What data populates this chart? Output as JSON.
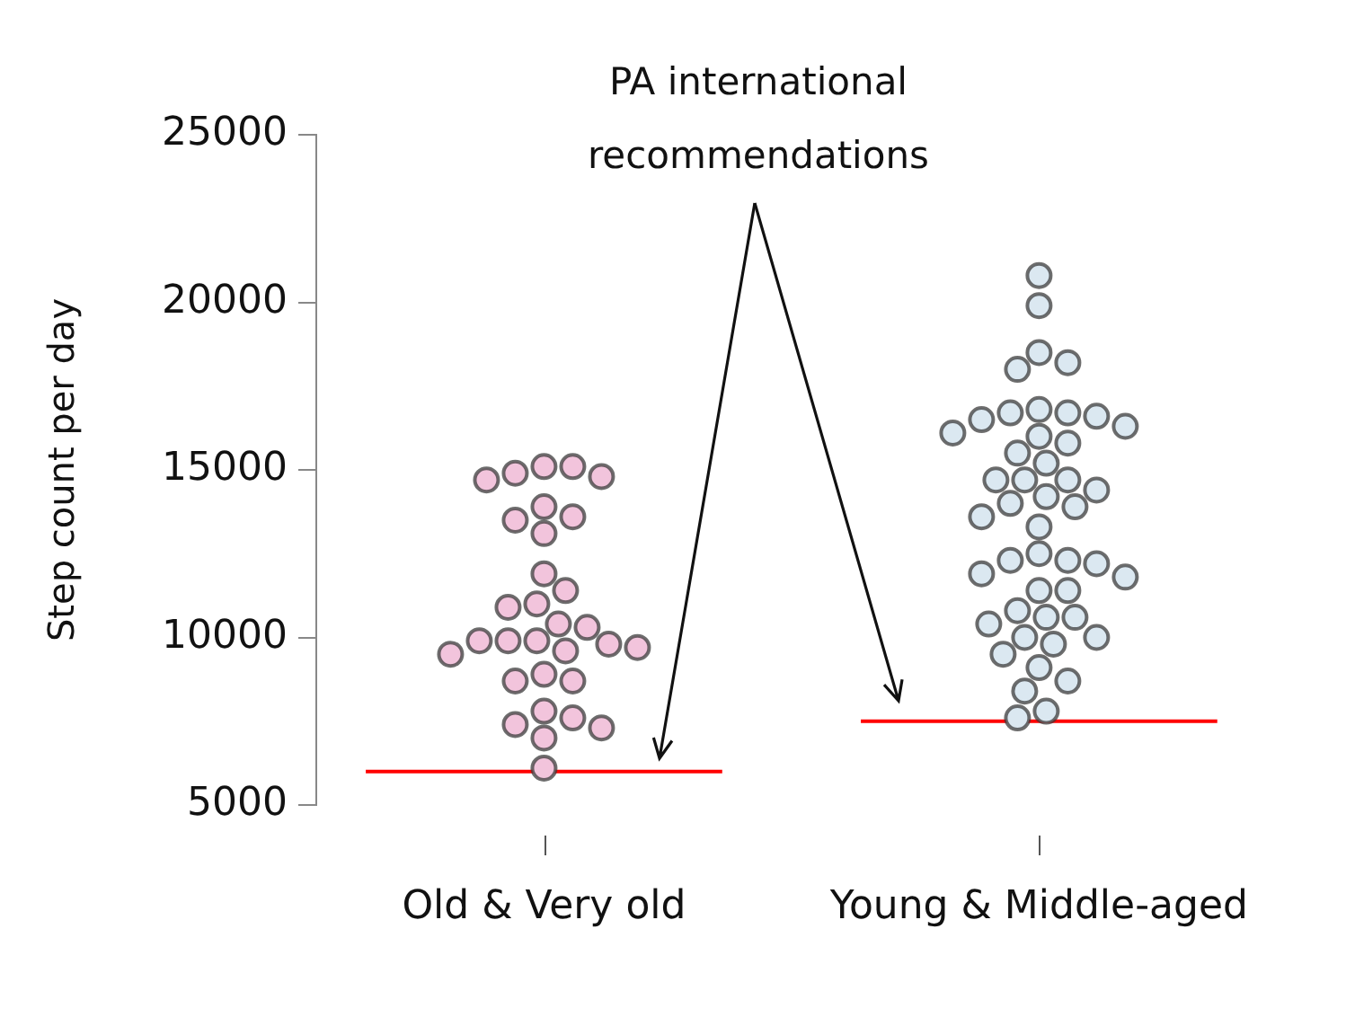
{
  "chart_data": {
    "type": "scatter",
    "ylabel": "Step count per day",
    "annotations": [
      "PA international recommendations"
    ],
    "categories": [
      "Old & Very old",
      "Young & Middle-aged"
    ],
    "ylim": [
      5000,
      25000
    ],
    "yticks": [
      5000,
      10000,
      15000,
      20000,
      25000
    ],
    "marker": "circle",
    "series": [
      {
        "color": "#f2c4dc",
        "x": [
          "Old & Very old",
          "Old & Very old",
          "Old & Very old",
          "Old & Very old",
          "Old & Very old",
          "Old & Very old",
          "Old & Very old",
          "Old & Very old",
          "Old & Very old",
          "Old & Very old",
          "Old & Very old",
          "Old & Very old",
          "Old & Very old",
          "Old & Very old",
          "Old & Very old",
          "Old & Very old",
          "Old & Very old",
          "Old & Very old",
          "Old & Very old",
          "Old & Very old",
          "Old & Very old",
          "Old & Very old",
          "Old & Very old",
          "Old & Very old",
          "Old & Very old",
          "Old & Very old",
          "Old & Very old",
          "Old & Very old",
          "Old & Very old",
          "Old & Very old",
          "Old & Very old"
        ],
        "values": [
          14900,
          14700,
          15100,
          15100,
          14800,
          13900,
          13600,
          13500,
          13100,
          11900,
          11400,
          11000,
          10900,
          10400,
          10300,
          9900,
          9900,
          9600,
          9800,
          9700,
          9900,
          9500,
          8900,
          8700,
          8700,
          7800,
          7400,
          7600,
          7300,
          7000,
          6100
        ]
      },
      {
        "color": "#dbe8f1",
        "x": [
          "Young & Middle-aged",
          "Young & Middle-aged",
          "Young & Middle-aged",
          "Young & Middle-aged",
          "Young & Middle-aged",
          "Young & Middle-aged",
          "Young & Middle-aged",
          "Young & Middle-aged",
          "Young & Middle-aged",
          "Young & Middle-aged",
          "Young & Middle-aged",
          "Young & Middle-aged",
          "Young & Middle-aged",
          "Young & Middle-aged",
          "Young & Middle-aged",
          "Young & Middle-aged",
          "Young & Middle-aged",
          "Young & Middle-aged",
          "Young & Middle-aged",
          "Young & Middle-aged",
          "Young & Middle-aged",
          "Young & Middle-aged",
          "Young & Middle-aged",
          "Young & Middle-aged",
          "Young & Middle-aged",
          "Young & Middle-aged",
          "Young & Middle-aged",
          "Young & Middle-aged",
          "Young & Middle-aged",
          "Young & Middle-aged",
          "Young & Middle-aged",
          "Young & Middle-aged",
          "Young & Middle-aged",
          "Young & Middle-aged",
          "Young & Middle-aged",
          "Young & Middle-aged",
          "Young & Middle-aged",
          "Young & Middle-aged",
          "Young & Middle-aged",
          "Young & Middle-aged",
          "Young & Middle-aged",
          "Young & Middle-aged",
          "Young & Middle-aged",
          "Young & Middle-aged",
          "Young & Middle-aged",
          "Young & Middle-aged"
        ],
        "values": [
          20800,
          19900,
          18500,
          18000,
          18200,
          16500,
          16300,
          16600,
          16700,
          16700,
          16800,
          16100,
          16000,
          15800,
          15500,
          15200,
          14700,
          14400,
          14700,
          14700,
          14000,
          14200,
          13900,
          13600,
          13300,
          12300,
          12500,
          12300,
          12200,
          11900,
          11800,
          11400,
          11400,
          10800,
          10400,
          10600,
          10600,
          10000,
          9800,
          10000,
          9500,
          9100,
          8700,
          8400,
          7800,
          7600
        ]
      }
    ],
    "ref_lines": [
      {
        "axis": "y",
        "value": 6000,
        "color": "#ff0000"
      },
      {
        "axis": "y",
        "value": 7500,
        "color": "#ff0000"
      }
    ]
  }
}
